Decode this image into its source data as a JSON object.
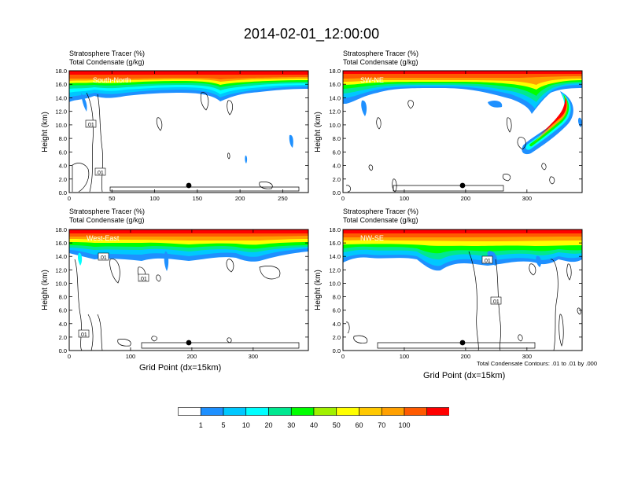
{
  "title": "2014-02-01_12:00:00",
  "colors": {
    "levels": [
      "#ffffff",
      "#1e90ff",
      "#00c8ff",
      "#00ffff",
      "#00e890",
      "#00ff00",
      "#a0f000",
      "#ffff00",
      "#ffc800",
      "#ffa000",
      "#ff5a00",
      "#ff0000"
    ]
  },
  "panels": [
    {
      "id": "south-north",
      "label": "South-North",
      "line1": "Stratosphere Tracer   (%)",
      "line2": "Total Condensate   (g/kg)",
      "ylabel": "Height (km)",
      "yticks": [
        "0.0",
        "2.0",
        "4.0",
        "6.0",
        "8.0",
        "10.0",
        "12.0",
        "14.0",
        "16.0",
        "18.0"
      ],
      "xticks": [
        "0",
        "50",
        "100",
        "150",
        "200",
        "250"
      ],
      "contour_labels": [
        ".01",
        ".01"
      ],
      "xlabel": ""
    },
    {
      "id": "sw-ne",
      "label": "SW-NE",
      "line1": "Stratosphere Tracer   (%)",
      "line2": "Total Condensate   (g/kg)",
      "ylabel": "Height (km)",
      "yticks": [
        "0.0",
        "2.0",
        "4.0",
        "6.0",
        "8.0",
        "10.0",
        "12.0",
        "14.0",
        "16.0",
        "18.0"
      ],
      "xticks": [
        "0",
        "100",
        "200",
        "300"
      ],
      "contour_labels": [],
      "xlabel": ""
    },
    {
      "id": "west-east",
      "label": "West-East",
      "line1": "Stratosphere Tracer   (%)",
      "line2": "Total Condensate   (g/kg)",
      "ylabel": "Height (km)",
      "yticks": [
        "0.0",
        "2.0",
        "4.0",
        "6.0",
        "8.0",
        "10.0",
        "12.0",
        "14.0",
        "16.0",
        "18.0"
      ],
      "xticks": [
        "0",
        "100",
        "200",
        "300"
      ],
      "contour_labels": [
        ".01",
        ".01",
        ".01"
      ],
      "xlabel": "Grid Point (dx=15km)"
    },
    {
      "id": "nw-se",
      "label": "NW-SE",
      "line1": "Stratosphere Tracer   (%)",
      "line2": "Total Condensate   (g/kg)",
      "ylabel": "Height (km)",
      "yticks": [
        "0.0",
        "2.0",
        "4.0",
        "6.0",
        "8.0",
        "10.0",
        "12.0",
        "14.0",
        "16.0",
        "18.0"
      ],
      "xticks": [
        "0",
        "100",
        "200",
        "300"
      ],
      "contour_labels": [
        ".01",
        ".01"
      ],
      "xlabel": "Grid Point (dx=15km)"
    }
  ],
  "contour_note": "Total Condensate Contours: .01 to .01 by .000",
  "colorbar": {
    "labels": [
      "1",
      "5",
      "10",
      "20",
      "30",
      "40",
      "50",
      "60",
      "70",
      "100"
    ]
  },
  "chart_data": {
    "type": "heatmap",
    "title": "2014-02-01_12:00:00",
    "ylabel": "Height (km)",
    "ylim": [
      0,
      18
    ],
    "series": [
      {
        "name": "South-North",
        "xlim": [
          0,
          280
        ],
        "grid_center": 140
      },
      {
        "name": "SW-NE",
        "xlim": [
          0,
          390
        ],
        "grid_center": 197
      },
      {
        "name": "West-East",
        "xlim": [
          0,
          390
        ],
        "grid_center": 197
      },
      {
        "name": "NW-SE",
        "xlim": [
          0,
          390
        ],
        "grid_center": 197
      }
    ],
    "colorbar_levels": [
      1,
      5,
      10,
      20,
      30,
      40,
      50,
      60,
      70,
      100
    ]
  }
}
